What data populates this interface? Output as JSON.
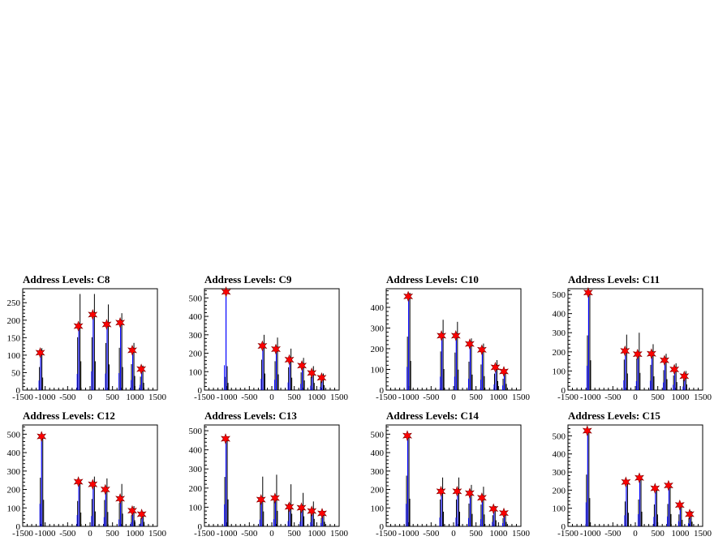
{
  "colors": {
    "black_hist": "#000000",
    "blue_hist": "#0000ff",
    "peak_marker": "#ff0000",
    "frame": "#000000"
  },
  "chart_data": [
    {
      "type": "bar",
      "title": "Address Levels: C8",
      "xlim": [
        -1500,
        1500
      ],
      "ylim": [
        0,
        290
      ],
      "xticks": [
        -1500,
        -1000,
        -500,
        0,
        500,
        1000,
        1500
      ],
      "yticks": [
        0,
        50,
        100,
        150,
        200,
        250
      ],
      "black_peaks": [
        [
          -1100,
          120
        ],
        [
          -250,
          275
        ],
        [
          70,
          275
        ],
        [
          380,
          245
        ],
        [
          680,
          220
        ],
        [
          950,
          135
        ],
        [
          1150,
          70
        ]
      ],
      "blue_peaks": [
        [
          -1100,
          110
        ],
        [
          -250,
          185
        ],
        [
          70,
          215
        ],
        [
          380,
          190
        ],
        [
          680,
          195
        ],
        [
          950,
          115
        ],
        [
          1150,
          60
        ]
      ],
      "markers": [
        [
          -1110,
          107
        ],
        [
          -260,
          183
        ],
        [
          60,
          216
        ],
        [
          370,
          188
        ],
        [
          670,
          193
        ],
        [
          940,
          114
        ],
        [
          1140,
          60
        ]
      ]
    },
    {
      "type": "bar",
      "title": "Address Levels: C9",
      "xlim": [
        -1500,
        1500
      ],
      "ylim": [
        0,
        550
      ],
      "xticks": [
        -1500,
        -1000,
        -500,
        0,
        500,
        1000,
        1500
      ],
      "yticks": [
        0,
        100,
        200,
        300,
        400,
        500
      ],
      "black_peaks": [
        [
          -1020,
          130
        ],
        [
          -200,
          300
        ],
        [
          100,
          285
        ],
        [
          400,
          225
        ],
        [
          680,
          175
        ],
        [
          900,
          130
        ],
        [
          1120,
          90
        ]
      ],
      "blue_peaks": [
        [
          -1020,
          540
        ],
        [
          -200,
          245
        ],
        [
          100,
          225
        ],
        [
          400,
          165
        ],
        [
          680,
          135
        ],
        [
          900,
          95
        ],
        [
          1120,
          70
        ]
      ],
      "markers": [
        [
          -1020,
          533
        ],
        [
          -210,
          240
        ],
        [
          90,
          222
        ],
        [
          390,
          165
        ],
        [
          670,
          133
        ],
        [
          890,
          93
        ],
        [
          1110,
          67
        ]
      ]
    },
    {
      "type": "bar",
      "title": "Address Levels: C10",
      "xlim": [
        -1500,
        1500
      ],
      "ylim": [
        0,
        490
      ],
      "xticks": [
        -1500,
        -1000,
        -500,
        0,
        500,
        1000,
        1500
      ],
      "yticks": [
        0,
        100,
        200,
        300,
        400
      ],
      "black_peaks": [
        [
          -1000,
          470
        ],
        [
          -260,
          340
        ],
        [
          60,
          330
        ],
        [
          370,
          250
        ],
        [
          640,
          225
        ],
        [
          940,
          145
        ],
        [
          1130,
          100
        ]
      ],
      "blue_peaks": [
        [
          -1000,
          450
        ],
        [
          -260,
          260
        ],
        [
          60,
          260
        ],
        [
          370,
          220
        ],
        [
          640,
          200
        ],
        [
          940,
          110
        ],
        [
          1130,
          90
        ]
      ],
      "markers": [
        [
          -1010,
          453
        ],
        [
          -270,
          263
        ],
        [
          50,
          263
        ],
        [
          360,
          223
        ],
        [
          630,
          195
        ],
        [
          930,
          110
        ],
        [
          1120,
          90
        ]
      ]
    },
    {
      "type": "bar",
      "title": "Address Levels: C11",
      "xlim": [
        -1500,
        1500
      ],
      "ylim": [
        0,
        530
      ],
      "xticks": [
        -1500,
        -1000,
        -500,
        0,
        500,
        1000,
        1500
      ],
      "yticks": [
        0,
        100,
        200,
        300,
        400,
        500
      ],
      "black_peaks": [
        [
          -1040,
          520
        ],
        [
          -220,
          290
        ],
        [
          60,
          300
        ],
        [
          370,
          240
        ],
        [
          660,
          190
        ],
        [
          880,
          140
        ],
        [
          1100,
          100
        ]
      ],
      "blue_peaks": [
        [
          -1040,
          510
        ],
        [
          -220,
          205
        ],
        [
          60,
          190
        ],
        [
          370,
          195
        ],
        [
          660,
          160
        ],
        [
          880,
          110
        ],
        [
          1100,
          75
        ]
      ],
      "markers": [
        [
          -1050,
          510
        ],
        [
          -230,
          205
        ],
        [
          50,
          188
        ],
        [
          360,
          190
        ],
        [
          650,
          156
        ],
        [
          870,
          108
        ],
        [
          1090,
          73
        ]
      ]
    },
    {
      "type": "bar",
      "title": "Address Levels: C12",
      "xlim": [
        -1500,
        1500
      ],
      "ylim": [
        0,
        550
      ],
      "xticks": [
        -1500,
        -1000,
        -500,
        0,
        500,
        1000,
        1500
      ],
      "yticks": [
        0,
        100,
        200,
        300,
        400,
        500
      ],
      "black_peaks": [
        [
          -1080,
          480
        ],
        [
          -250,
          250
        ],
        [
          70,
          270
        ],
        [
          350,
          260
        ],
        [
          680,
          230
        ],
        [
          950,
          110
        ],
        [
          1160,
          80
        ]
      ],
      "blue_peaks": [
        [
          -1080,
          490
        ],
        [
          -250,
          245
        ],
        [
          70,
          225
        ],
        [
          350,
          200
        ],
        [
          680,
          150
        ],
        [
          950,
          85
        ],
        [
          1160,
          65
        ]
      ],
      "markers": [
        [
          -1080,
          488
        ],
        [
          -260,
          242
        ],
        [
          60,
          228
        ],
        [
          340,
          200
        ],
        [
          670,
          150
        ],
        [
          940,
          85
        ],
        [
          1150,
          66
        ]
      ]
    },
    {
      "type": "bar",
      "title": "Address Levels: C13",
      "xlim": [
        -1500,
        1500
      ],
      "ylim": [
        0,
        530
      ],
      "xticks": [
        -1500,
        -1000,
        -500,
        0,
        500,
        1000,
        1500
      ],
      "yticks": [
        0,
        100,
        200,
        300,
        400,
        500
      ],
      "black_peaks": [
        [
          -1020,
          470
        ],
        [
          -230,
          260
        ],
        [
          80,
          270
        ],
        [
          400,
          220
        ],
        [
          670,
          175
        ],
        [
          900,
          130
        ],
        [
          1130,
          80
        ]
      ],
      "blue_peaks": [
        [
          -1020,
          460
        ],
        [
          -230,
          140
        ],
        [
          80,
          150
        ],
        [
          400,
          110
        ],
        [
          670,
          100
        ],
        [
          900,
          85
        ],
        [
          1130,
          70
        ]
      ],
      "markers": [
        [
          -1030,
          458
        ],
        [
          -240,
          140
        ],
        [
          70,
          148
        ],
        [
          390,
          102
        ],
        [
          660,
          97
        ],
        [
          890,
          80
        ],
        [
          1120,
          68
        ]
      ]
    },
    {
      "type": "bar",
      "title": "Address Levels: C14",
      "xlim": [
        -1500,
        1500
      ],
      "ylim": [
        0,
        550
      ],
      "xticks": [
        -1500,
        -1000,
        -500,
        0,
        500,
        1000,
        1500
      ],
      "yticks": [
        0,
        100,
        200,
        300,
        400,
        500
      ],
      "black_peaks": [
        [
          -1020,
          500
        ],
        [
          -270,
          265
        ],
        [
          90,
          265
        ],
        [
          370,
          225
        ],
        [
          640,
          215
        ],
        [
          900,
          110
        ],
        [
          1130,
          80
        ]
      ],
      "blue_peaks": [
        [
          -1020,
          490
        ],
        [
          -270,
          190
        ],
        [
          90,
          190
        ],
        [
          370,
          180
        ],
        [
          640,
          155
        ],
        [
          900,
          95
        ],
        [
          1130,
          70
        ]
      ],
      "markers": [
        [
          -1030,
          492
        ],
        [
          -280,
          190
        ],
        [
          80,
          190
        ],
        [
          360,
          180
        ],
        [
          630,
          155
        ],
        [
          890,
          95
        ],
        [
          1120,
          72
        ]
      ]
    },
    {
      "type": "bar",
      "title": "Address Levels: C15",
      "xlim": [
        -1500,
        1500
      ],
      "ylim": [
        0,
        560
      ],
      "xticks": [
        -1500,
        -1000,
        -500,
        0,
        500,
        1000,
        1500
      ],
      "yticks": [
        0,
        100,
        200,
        300,
        400,
        500
      ],
      "black_peaks": [
        [
          -1060,
          520
        ],
        [
          -200,
          250
        ],
        [
          100,
          270
        ],
        [
          450,
          220
        ],
        [
          750,
          225
        ],
        [
          1000,
          120
        ],
        [
          1220,
          85
        ]
      ],
      "blue_peaks": [
        [
          -1060,
          530
        ],
        [
          -200,
          245
        ],
        [
          100,
          270
        ],
        [
          450,
          210
        ],
        [
          750,
          220
        ],
        [
          1000,
          115
        ],
        [
          1220,
          70
        ]
      ],
      "markers": [
        [
          -1070,
          528
        ],
        [
          -210,
          245
        ],
        [
          90,
          268
        ],
        [
          440,
          210
        ],
        [
          740,
          226
        ],
        [
          990,
          118
        ],
        [
          1210,
          67
        ]
      ]
    }
  ]
}
